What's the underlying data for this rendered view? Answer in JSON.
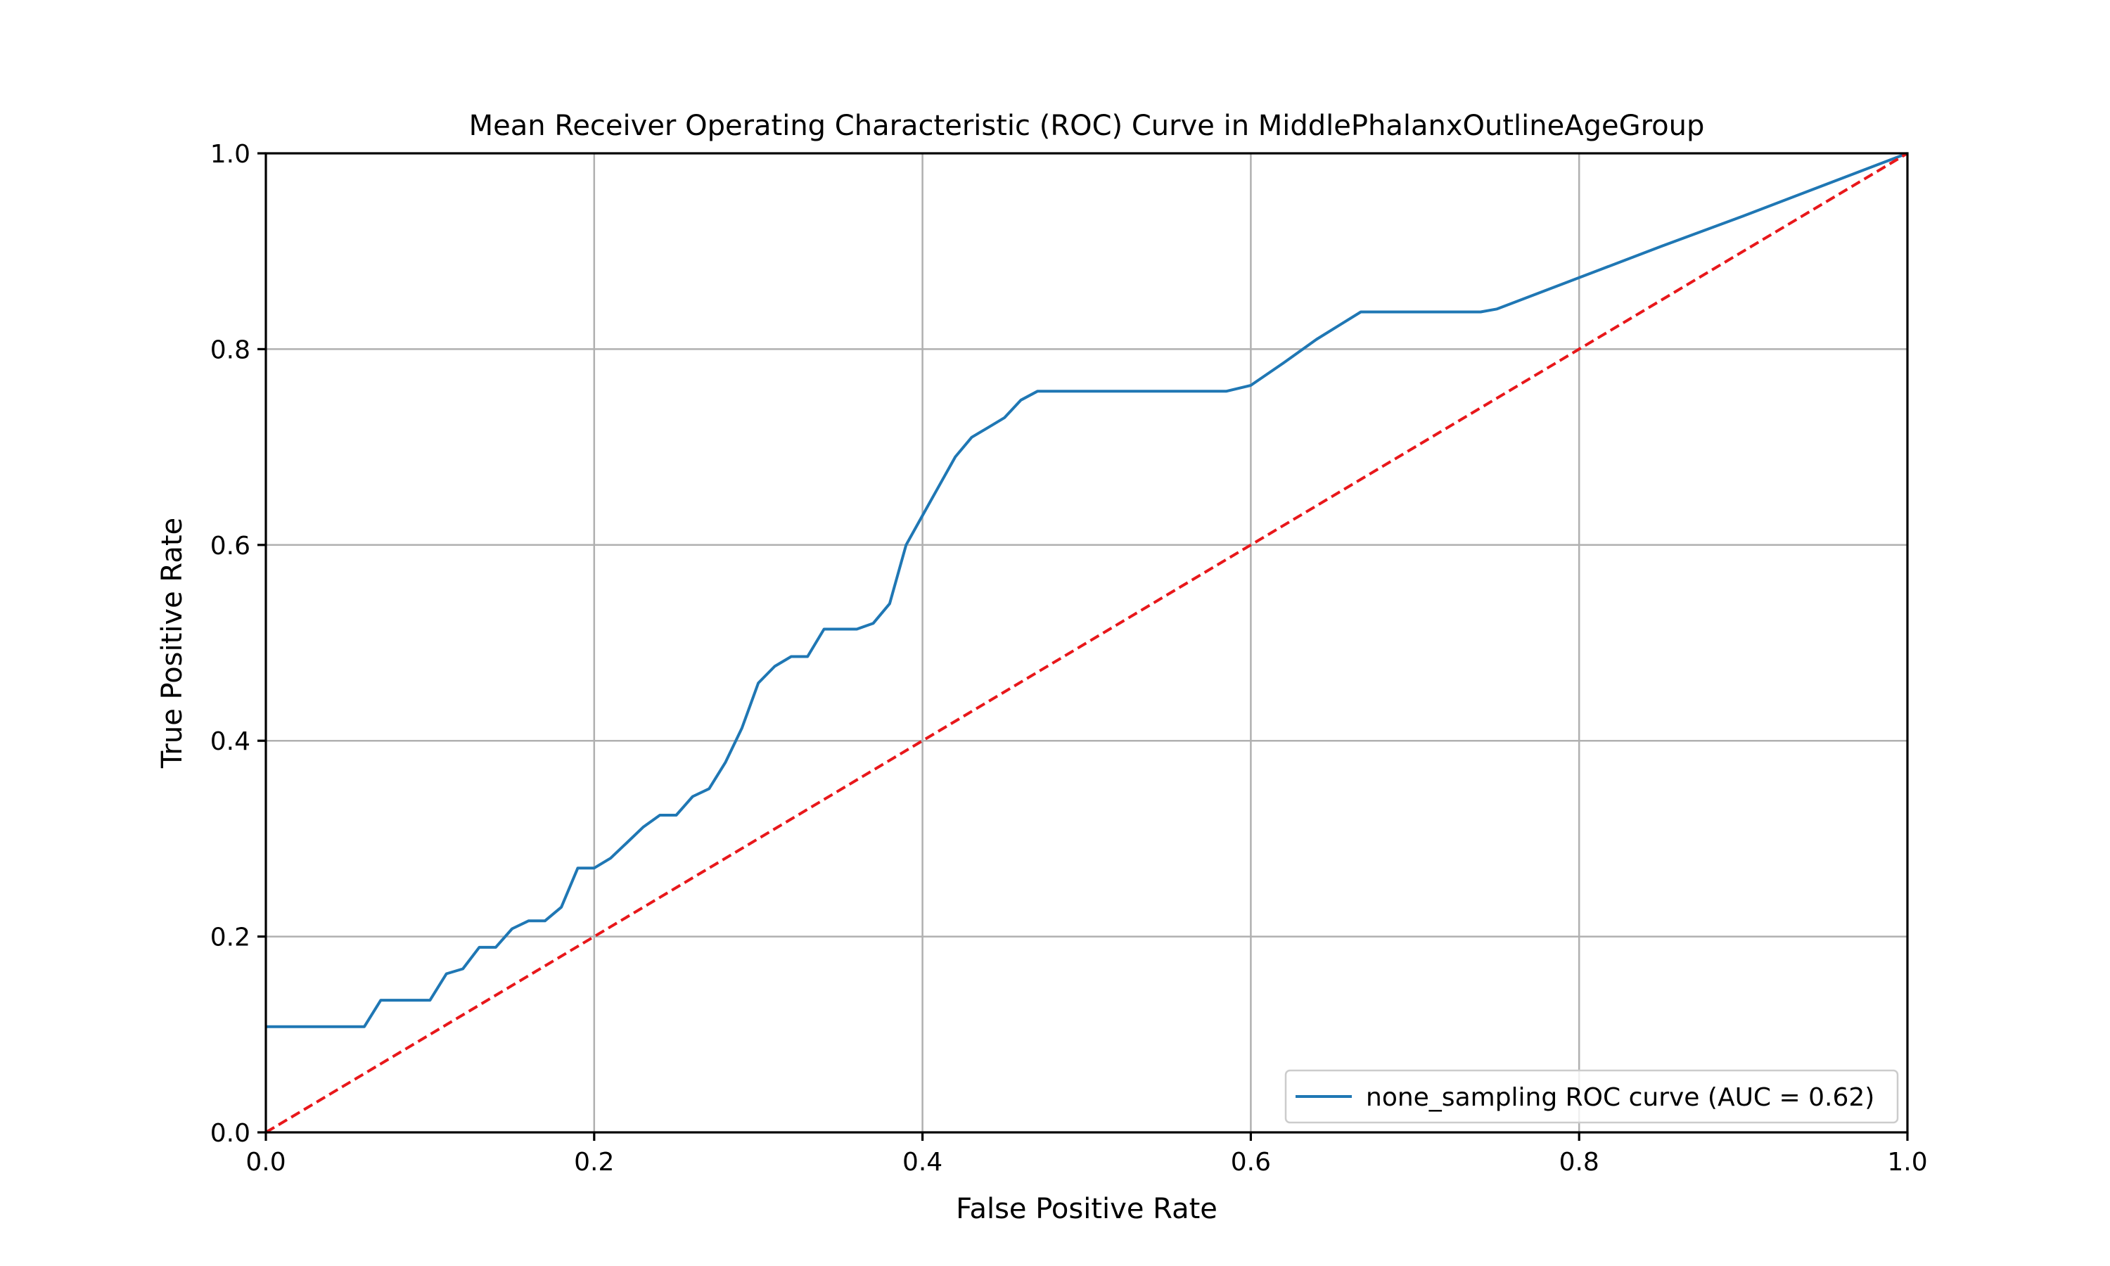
{
  "chart_data": {
    "type": "line",
    "title": "Mean Receiver Operating Characteristic (ROC) Curve in MiddlePhalanxOutlineAgeGroup",
    "xlabel": "False Positive Rate",
    "ylabel": "True Positive Rate",
    "xlim": [
      0.0,
      1.0
    ],
    "ylim": [
      0.0,
      1.0
    ],
    "xticks": [
      "0.0",
      "0.2",
      "0.4",
      "0.6",
      "0.8",
      "1.0"
    ],
    "yticks": [
      "0.0",
      "0.2",
      "0.4",
      "0.6",
      "0.8",
      "1.0"
    ],
    "grid": true,
    "legend_position": "lower right",
    "series": [
      {
        "name": "none_sampling ROC curve (AUC = 0.62)",
        "color": "#1f77b4",
        "style": "solid",
        "x": [
          0.0,
          0.02,
          0.04,
          0.06,
          0.07,
          0.08,
          0.09,
          0.1,
          0.11,
          0.12,
          0.13,
          0.14,
          0.15,
          0.16,
          0.17,
          0.18,
          0.19,
          0.2,
          0.21,
          0.22,
          0.23,
          0.24,
          0.25,
          0.26,
          0.27,
          0.28,
          0.29,
          0.3,
          0.31,
          0.32,
          0.33,
          0.34,
          0.35,
          0.36,
          0.37,
          0.38,
          0.39,
          0.4,
          0.41,
          0.42,
          0.43,
          0.44,
          0.45,
          0.46,
          0.47,
          0.48,
          0.5,
          0.55,
          0.585,
          0.6,
          0.62,
          0.64,
          0.667,
          0.7,
          0.74,
          0.75,
          0.8,
          0.85,
          0.9,
          0.95,
          1.0
        ],
        "y": [
          0.108,
          0.108,
          0.108,
          0.108,
          0.135,
          0.135,
          0.135,
          0.135,
          0.162,
          0.167,
          0.189,
          0.189,
          0.208,
          0.216,
          0.216,
          0.23,
          0.27,
          0.27,
          0.28,
          0.296,
          0.312,
          0.324,
          0.324,
          0.343,
          0.351,
          0.378,
          0.413,
          0.459,
          0.476,
          0.486,
          0.486,
          0.514,
          0.514,
          0.514,
          0.52,
          0.54,
          0.6,
          0.63,
          0.66,
          0.69,
          0.71,
          0.72,
          0.73,
          0.748,
          0.757,
          0.757,
          0.757,
          0.757,
          0.757,
          0.763,
          0.786,
          0.81,
          0.838,
          0.838,
          0.838,
          0.841,
          0.873,
          0.905,
          0.936,
          0.968,
          1.0
        ]
      },
      {
        "name": "",
        "color": "#e8171a",
        "style": "dashed",
        "x": [
          0.0,
          1.0
        ],
        "y": [
          0.0,
          1.0
        ]
      }
    ]
  }
}
